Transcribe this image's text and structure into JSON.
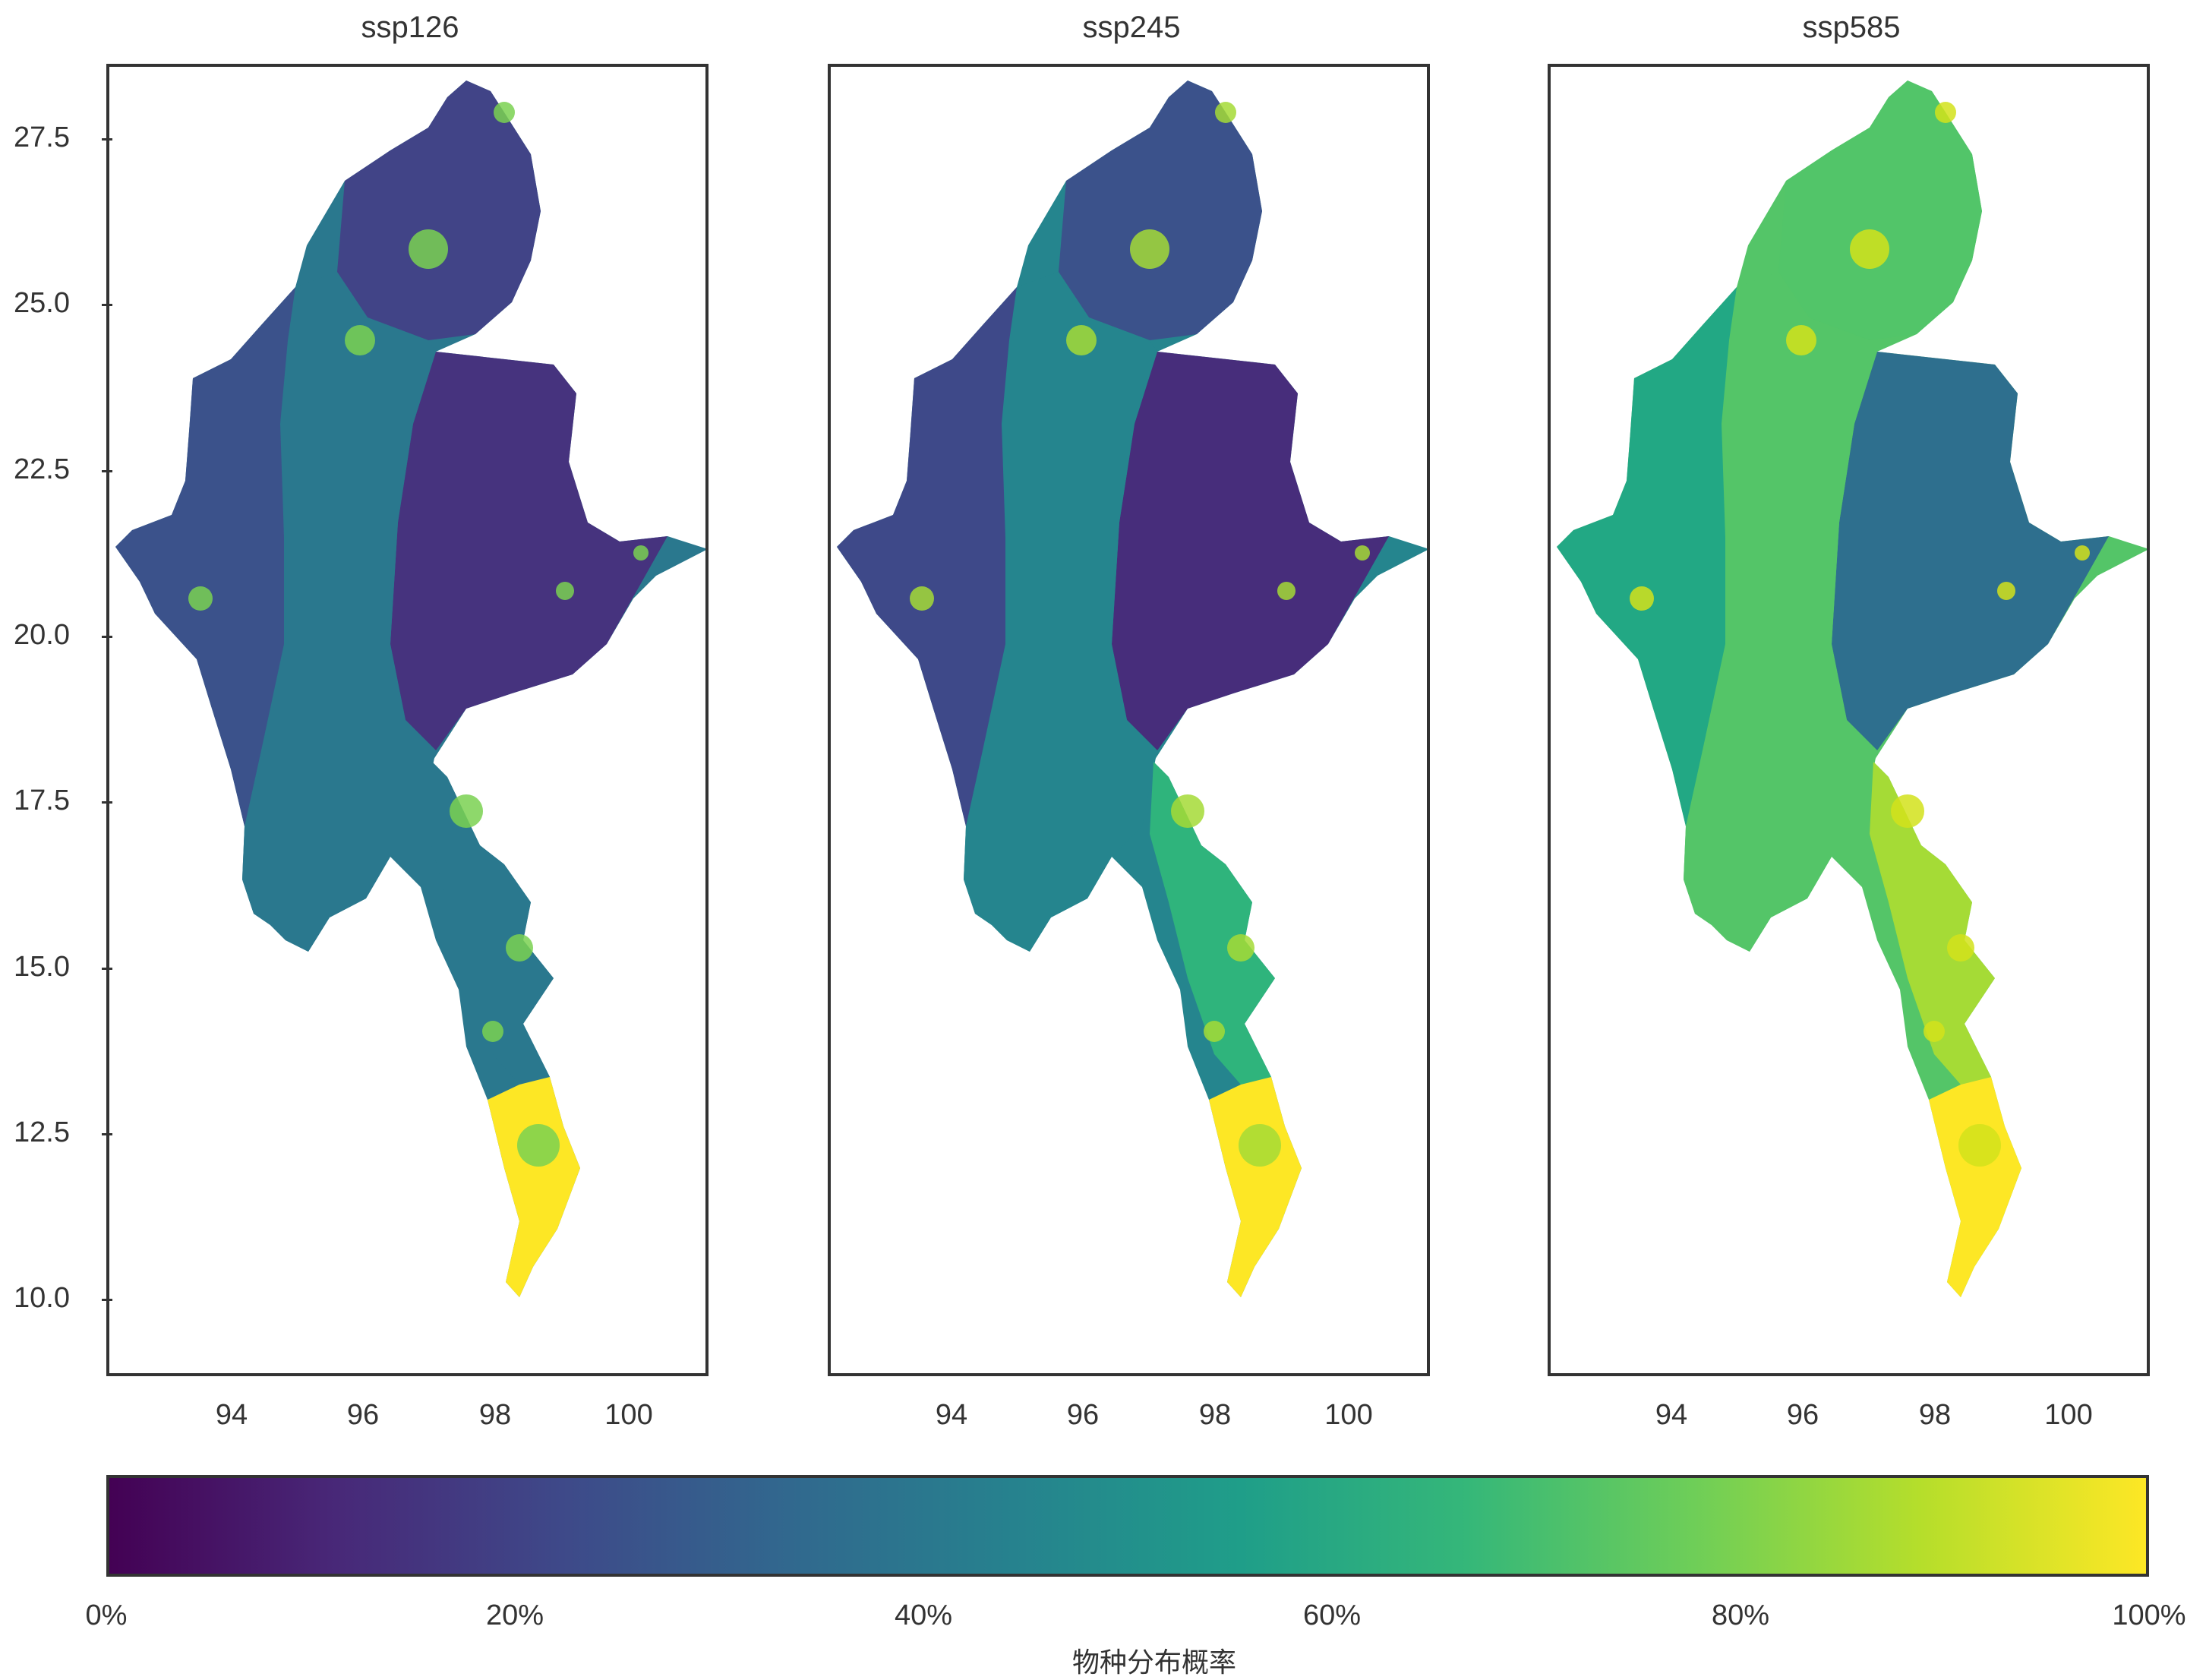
{
  "panels": [
    {
      "title": "ssp126",
      "palette": {
        "north": "#414487",
        "plateau": "#46337e",
        "central": "#2a788e",
        "west": "#3b528b",
        "coastal": "#2a788e",
        "south": "#fde725",
        "spots": "#7ad151"
      }
    },
    {
      "title": "ssp245",
      "palette": {
        "north": "#3b528b",
        "plateau": "#472d7b",
        "central": "#25858e",
        "west": "#3e4989",
        "coastal": "#2fb47c",
        "south": "#fde725",
        "spots": "#a5db36"
      }
    },
    {
      "title": "ssp585",
      "palette": {
        "north": "#52c569",
        "plateau": "#2e6f8e",
        "central": "#54c568",
        "west": "#22a884",
        "coastal": "#a5db36",
        "south": "#fde725",
        "spots": "#d2e21b"
      }
    }
  ],
  "y_axis": {
    "ticks": [
      "27.5",
      "25.0",
      "22.5",
      "20.0",
      "17.5",
      "15.0",
      "12.5",
      "10.0"
    ]
  },
  "x_axis": {
    "ticks": [
      "94",
      "96",
      "98",
      "100"
    ]
  },
  "colorbar": {
    "colors": [
      "#440154",
      "#482878",
      "#3e4989",
      "#31688e",
      "#26828e",
      "#1f9e89",
      "#35b779",
      "#6ece58",
      "#b5de2b",
      "#fde725"
    ],
    "ticks": [
      "0%",
      "20%",
      "40%",
      "60%",
      "80%",
      "100%"
    ],
    "title": "物种分布概率"
  }
}
